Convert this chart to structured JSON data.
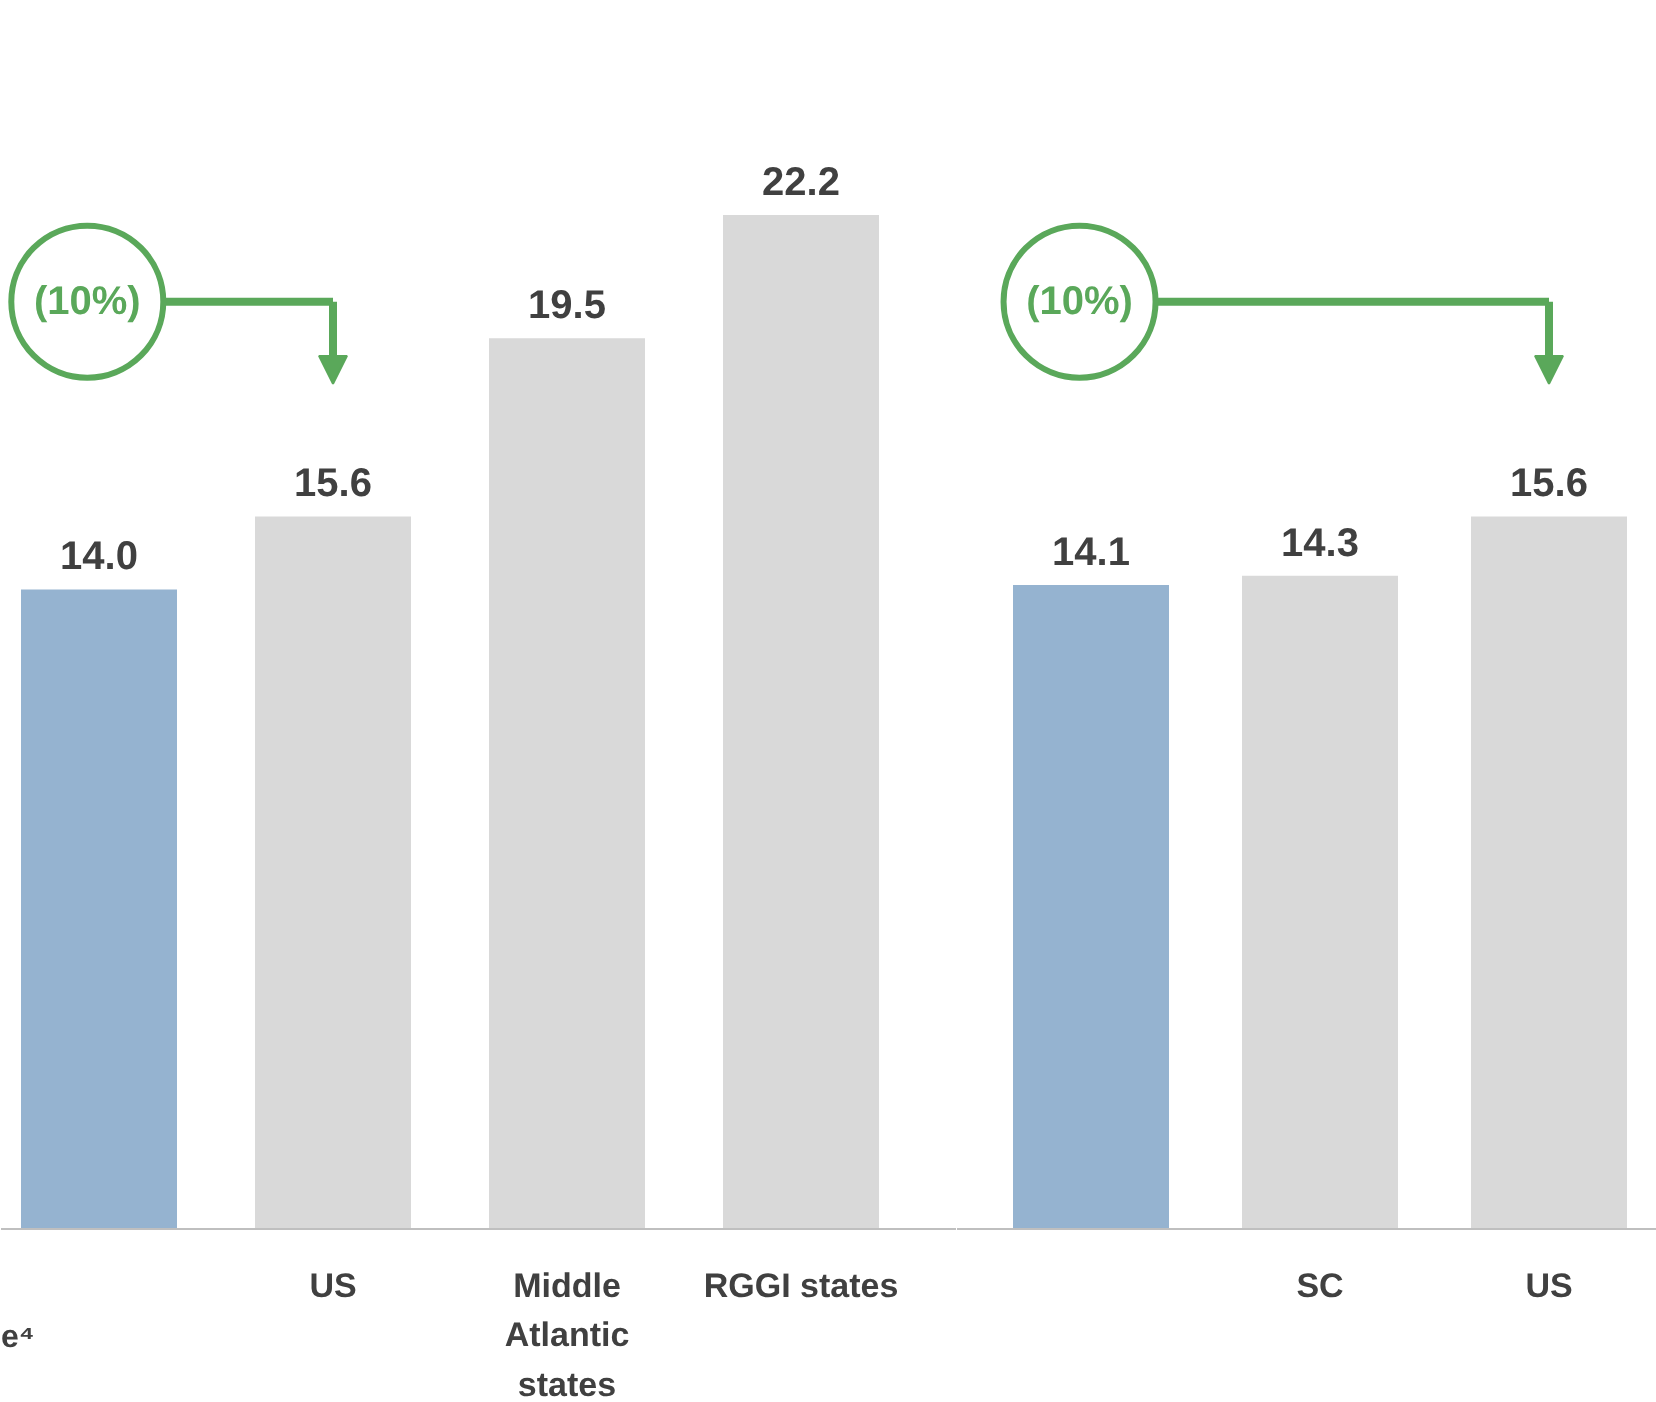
{
  "chart_data": [
    {
      "type": "bar",
      "categories": [
        null,
        "US",
        "Middle Atlantic states",
        "RGGI states"
      ],
      "colors": [
        "#95b3d0",
        "#d9d9d9",
        "#d9d9d9",
        "#d9d9d9"
      ],
      "values": [
        14.0,
        15.6,
        19.5,
        22.2
      ],
      "value_labels": [
        "14.0",
        "15.6",
        "19.5",
        "22.2"
      ],
      "annotations": [
        "(10%)",
        "e⁴"
      ]
    },
    {
      "type": "bar",
      "categories": [
        null,
        "SC",
        "US"
      ],
      "colors": [
        "#95b3d0",
        "#d9d9d9",
        "#d9d9d9"
      ],
      "values": [
        14.1,
        14.3,
        15.6
      ],
      "value_labels": [
        "14.1",
        "14.3",
        "15.6"
      ],
      "annotations": [
        "(10%)"
      ]
    }
  ]
}
